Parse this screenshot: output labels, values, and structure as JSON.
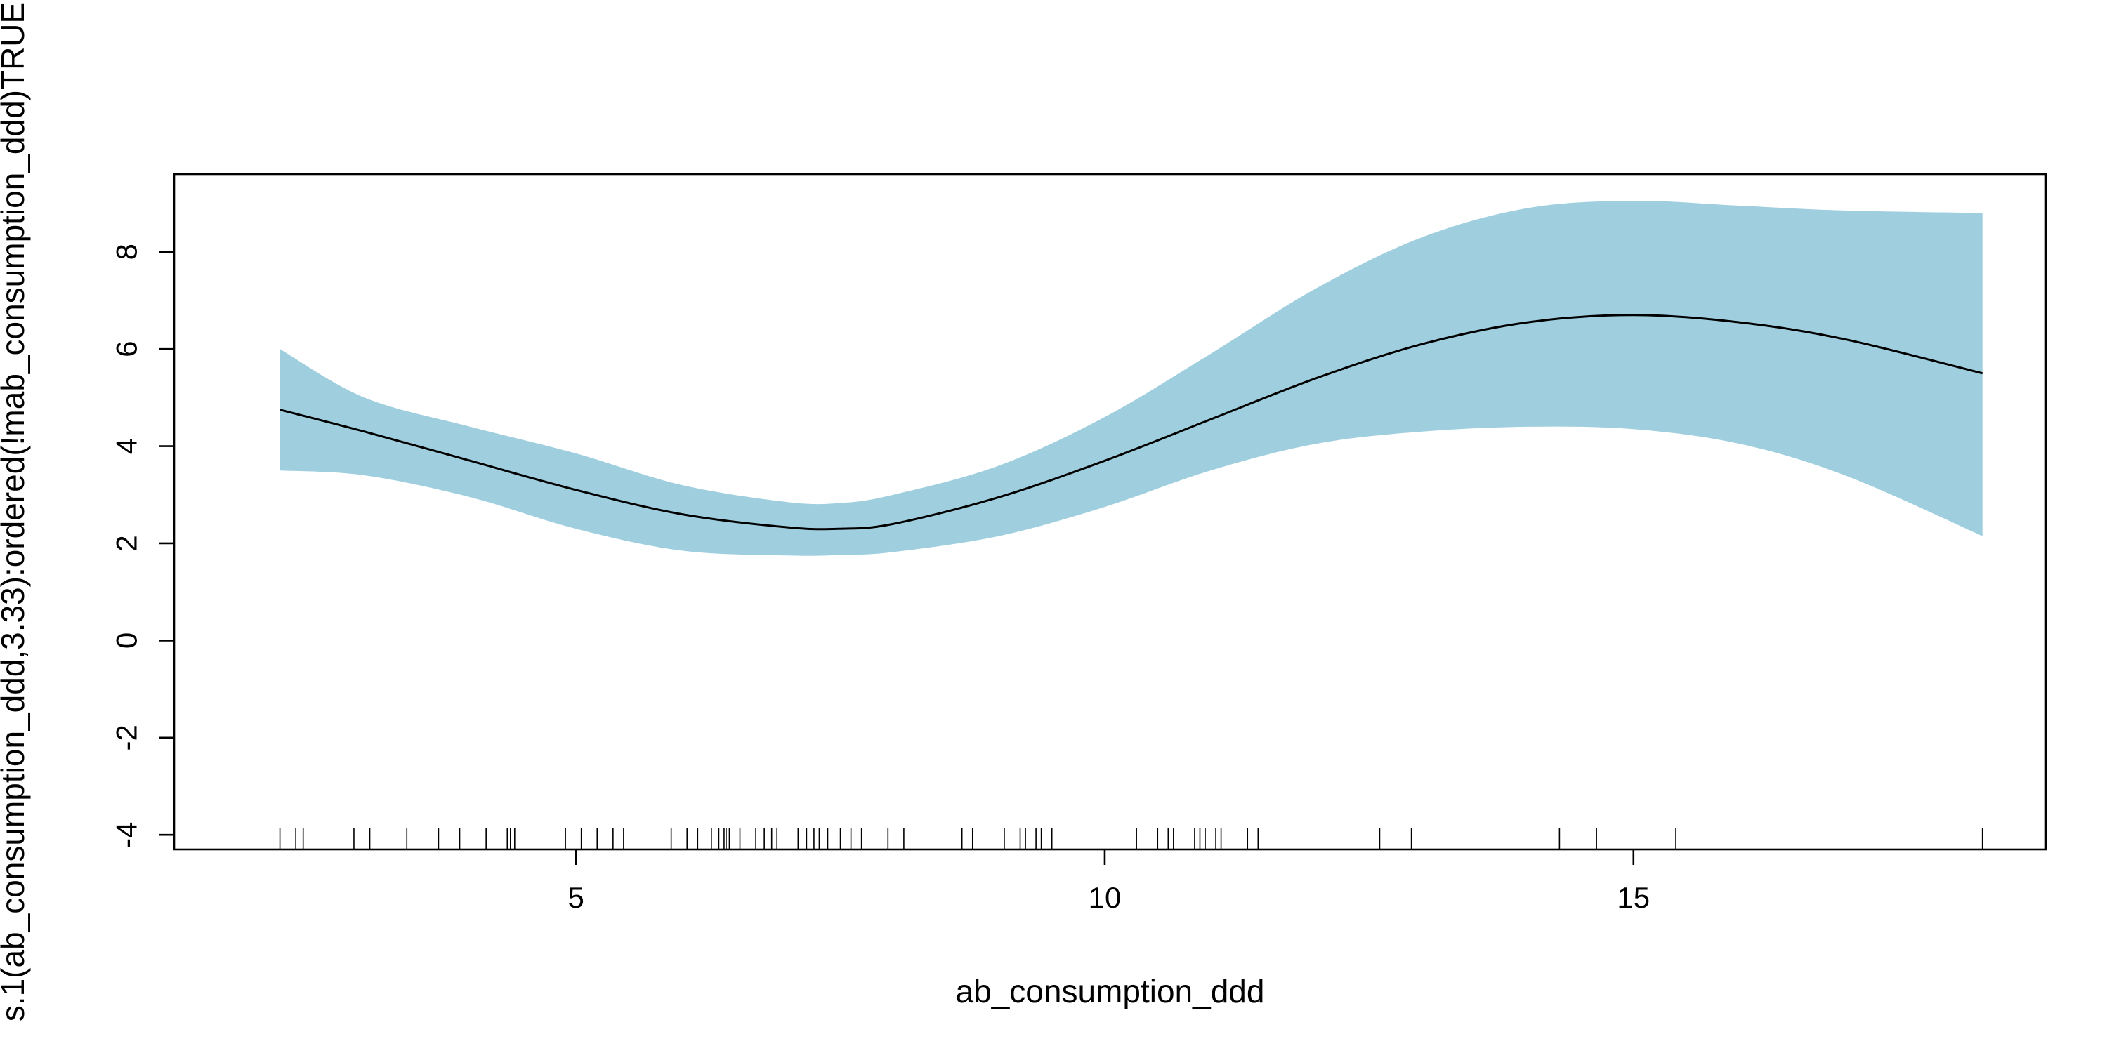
{
  "chart_data": {
    "type": "line",
    "title": "",
    "xlabel": "ab_consumption_ddd",
    "ylabel": "s.1(ab_consumption_ddd,3.33):ordered(!mab_consumption_ddd)TRUE",
    "xlim": [
      1.2,
      18.9
    ],
    "ylim": [
      -4.3,
      9.6
    ],
    "x_ticks": [
      5,
      10,
      15
    ],
    "y_ticks": [
      -4,
      -2,
      0,
      2,
      4,
      6,
      8
    ],
    "grid": false,
    "legend": "none",
    "colors": {
      "band": "#9fcfdf",
      "line": "#000000",
      "axis": "#000000"
    },
    "series": [
      {
        "x": [
          2.2,
          3,
          4,
          5,
          6,
          7,
          7.5,
          8,
          9,
          10,
          11,
          12,
          13,
          14,
          15,
          16,
          17,
          18.3
        ],
        "fit": [
          4.75,
          4.3,
          3.7,
          3.1,
          2.6,
          2.33,
          2.3,
          2.4,
          2.95,
          3.7,
          4.55,
          5.4,
          6.1,
          6.55,
          6.7,
          6.55,
          6.2,
          5.5
        ],
        "lower": [
          3.5,
          3.4,
          2.95,
          2.3,
          1.85,
          1.75,
          1.76,
          1.82,
          2.15,
          2.75,
          3.5,
          4.05,
          4.3,
          4.4,
          4.35,
          4.05,
          3.4,
          2.15
        ],
        "upper": [
          6.0,
          5.0,
          4.4,
          3.85,
          3.2,
          2.85,
          2.83,
          3.0,
          3.6,
          4.6,
          5.9,
          7.25,
          8.3,
          8.9,
          9.05,
          8.95,
          8.85,
          8.8
        ]
      }
    ],
    "rug": [
      2.2,
      2.35,
      2.42,
      2.9,
      3.05,
      3.4,
      3.7,
      3.9,
      4.15,
      4.35,
      4.38,
      4.42,
      4.9,
      5.05,
      5.2,
      5.35,
      5.45,
      5.9,
      6.05,
      6.15,
      6.28,
      6.35,
      6.4,
      6.42,
      6.45,
      6.55,
      6.7,
      6.78,
      6.85,
      6.9,
      7.1,
      7.18,
      7.25,
      7.3,
      7.38,
      7.5,
      7.6,
      7.7,
      7.95,
      8.1,
      8.65,
      8.75,
      9.05,
      9.2,
      9.25,
      9.35,
      9.4,
      9.5,
      10.3,
      10.5,
      10.6,
      10.65,
      10.85,
      10.9,
      10.95,
      11.05,
      11.1,
      11.35,
      11.45,
      12.6,
      12.9,
      14.3,
      14.65,
      15.4,
      18.3
    ]
  }
}
